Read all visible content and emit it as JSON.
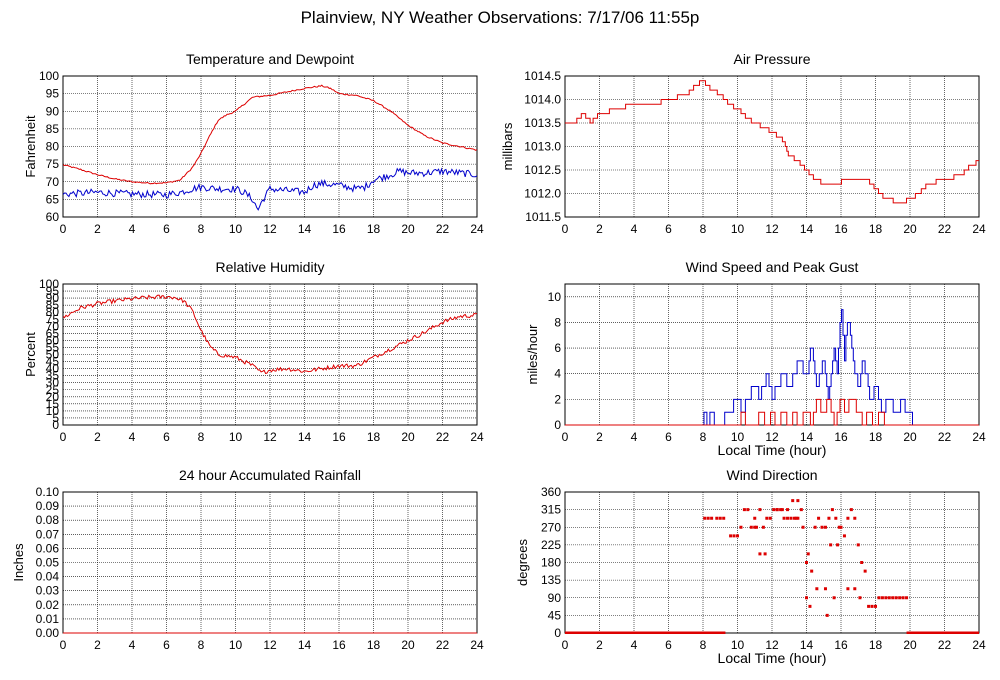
{
  "page_title": "Plainview, NY Weather Observations: 7/17/06 11:55p",
  "colors": {
    "red": "#dd0000",
    "blue": "#0000cc",
    "grid": "#000000",
    "axis": "#000000"
  },
  "chart_data": [
    {
      "id": "temp",
      "type": "line",
      "title": "Temperature and Dewpoint",
      "xlabel": "",
      "ylabel": "Fahrenheit",
      "xlim": [
        0,
        24
      ],
      "ylim": [
        60,
        100
      ],
      "xticks": [
        0,
        2,
        4,
        6,
        8,
        10,
        12,
        14,
        16,
        18,
        20,
        22,
        24
      ],
      "yticks": [
        60,
        65,
        70,
        75,
        80,
        85,
        90,
        95,
        100
      ],
      "ytick_labels": [
        "60",
        "65",
        "70",
        "75",
        "80",
        "85",
        "90",
        "95",
        "100"
      ],
      "grid": true,
      "series": [
        {
          "color": "#dd0000",
          "jitter": 0.2,
          "x": [
            0,
            1,
            2,
            3,
            4,
            5,
            6,
            6.8,
            7.5,
            8,
            8.5,
            9,
            9.5,
            10,
            10.5,
            11,
            12,
            13,
            14,
            15,
            15.5,
            16,
            17,
            18,
            19,
            20,
            21,
            22,
            23,
            24
          ],
          "values": [
            74.8,
            73.5,
            72,
            70.8,
            70,
            69.6,
            69.7,
            70.5,
            74,
            78,
            83,
            87.5,
            89,
            90,
            92,
            94,
            94.5,
            95.5,
            96.5,
            97.2,
            96.5,
            95,
            94.5,
            93,
            90,
            86,
            83,
            81,
            80,
            79
          ]
        },
        {
          "color": "#0000cc",
          "jitter": 1.0,
          "x": [
            0,
            2,
            4,
            6,
            6.8,
            7.5,
            8,
            9,
            10,
            10.5,
            11,
            11.3,
            11.6,
            12,
            13,
            14,
            14.5,
            15,
            16,
            17,
            17.5,
            18,
            19,
            19.5,
            20,
            21,
            22,
            23,
            24
          ],
          "values": [
            66.5,
            67,
            66.5,
            66.3,
            67,
            68,
            68.5,
            68,
            68,
            67,
            65,
            62,
            65,
            68,
            67.5,
            67,
            69,
            69.5,
            69,
            68,
            68.5,
            70.5,
            72,
            73,
            72.5,
            72.5,
            73,
            72.5,
            72
          ]
        }
      ]
    },
    {
      "id": "pressure",
      "type": "line",
      "title": "Air Pressure",
      "xlabel": "",
      "ylabel": "millibars",
      "xlim": [
        0,
        24
      ],
      "ylim": [
        1011.5,
        1014.5
      ],
      "xticks": [
        0,
        2,
        4,
        6,
        8,
        10,
        12,
        14,
        16,
        18,
        20,
        22,
        24
      ],
      "yticks": [
        1011.5,
        1012,
        1012.5,
        1013,
        1013.5,
        1014,
        1014.5
      ],
      "ytick_labels": [
        "1011.5",
        "1012.0",
        "1012.5",
        "1013.0",
        "1013.5",
        "1014.0",
        "1014.5"
      ],
      "grid": true,
      "step": 0.1,
      "series": [
        {
          "color": "#dd0000",
          "jitter": 0.0,
          "x": [
            0,
            0.5,
            1,
            1.5,
            2,
            3,
            4,
            5,
            6,
            7,
            7.5,
            8,
            8.5,
            9,
            9.5,
            10,
            10.5,
            11,
            11.5,
            12,
            12.5,
            13,
            13.5,
            14,
            14.5,
            15,
            16,
            17,
            17.5,
            18,
            18.5,
            19,
            19.5,
            20,
            20.5,
            21,
            22,
            23,
            23.5,
            24
          ],
          "values": [
            1013.5,
            1013.5,
            1013.7,
            1013.5,
            1013.7,
            1013.8,
            1013.9,
            1013.9,
            1014.0,
            1014.1,
            1014.3,
            1014.4,
            1014.2,
            1014.1,
            1013.9,
            1013.8,
            1013.6,
            1013.5,
            1013.4,
            1013.3,
            1013.2,
            1012.8,
            1012.7,
            1012.5,
            1012.3,
            1012.2,
            1012.25,
            1012.3,
            1012.3,
            1012.1,
            1011.9,
            1011.85,
            1011.8,
            1011.9,
            1012.0,
            1012.2,
            1012.3,
            1012.4,
            1012.6,
            1012.7
          ]
        }
      ]
    },
    {
      "id": "humidity",
      "type": "line",
      "title": "Relative Humidity",
      "xlabel": "",
      "ylabel": "Percent",
      "xlim": [
        0,
        24
      ],
      "ylim": [
        0,
        100
      ],
      "xticks": [
        0,
        2,
        4,
        6,
        8,
        10,
        12,
        14,
        16,
        18,
        20,
        22,
        24
      ],
      "yticks": [
        0,
        5,
        10,
        15,
        20,
        25,
        30,
        35,
        40,
        45,
        50,
        55,
        60,
        65,
        70,
        75,
        80,
        85,
        90,
        95,
        100
      ],
      "ytick_labels": [
        "0",
        "5",
        "10",
        "15",
        "20",
        "25",
        "30",
        "35",
        "40",
        "45",
        "50",
        "55",
        "60",
        "65",
        "70",
        "75",
        "80",
        "85",
        "90",
        "95",
        "100"
      ],
      "grid": true,
      "series": [
        {
          "color": "#dd0000",
          "jitter": 1.5,
          "x": [
            0,
            1,
            2,
            3,
            4,
            5,
            6,
            6.5,
            7,
            7.5,
            8,
            8.5,
            9,
            10,
            11,
            11.5,
            12,
            13,
            14,
            15,
            16,
            17,
            18,
            19,
            20,
            21,
            22,
            23,
            24
          ],
          "values": [
            76,
            83,
            86,
            88,
            89.5,
            90.5,
            91,
            90.5,
            88,
            81,
            67,
            56,
            50,
            48,
            42,
            37,
            39,
            40,
            38,
            40,
            42,
            42,
            48,
            54,
            60,
            66,
            73,
            77,
            78
          ]
        }
      ]
    },
    {
      "id": "wind",
      "type": "line",
      "title": "Wind Speed and Peak Gust",
      "xlabel": "Local Time (hour)",
      "ylabel": "miles/hour",
      "xlim": [
        0,
        24
      ],
      "ylim": [
        0,
        11
      ],
      "xticks": [
        0,
        2,
        4,
        6,
        8,
        10,
        12,
        14,
        16,
        18,
        20,
        22,
        24
      ],
      "yticks": [
        0,
        2,
        4,
        6,
        8,
        10
      ],
      "ytick_labels": [
        "0",
        "2",
        "4",
        "6",
        "8",
        "10"
      ],
      "grid": true,
      "step": 1,
      "series": [
        {
          "color": "#0000cc",
          "jitter": 0.0,
          "x": [
            0,
            8,
            8.1,
            8.3,
            8.5,
            8.7,
            9,
            9.5,
            10,
            10.3,
            10.6,
            11,
            11.3,
            11.7,
            12,
            12.3,
            12.6,
            13,
            13.3,
            13.6,
            14,
            14.3,
            14.6,
            15,
            15.3,
            15.6,
            15.8,
            16,
            16.2,
            16.4,
            16.7,
            17,
            17.3,
            17.7,
            18,
            18.4,
            18.8,
            19.2,
            19.6,
            19.8,
            20,
            20.2,
            24
          ],
          "values": [
            0,
            0,
            1,
            0,
            1,
            0,
            0,
            1,
            2,
            1,
            2,
            3,
            2,
            4,
            2,
            3,
            4,
            3,
            4,
            5,
            4,
            6,
            3,
            5,
            2,
            6,
            4,
            10,
            5,
            9,
            5,
            3,
            5,
            2,
            3,
            1,
            2,
            1,
            2,
            1,
            1,
            0,
            0
          ]
        },
        {
          "color": "#dd0000",
          "jitter": 0.0,
          "x": [
            0,
            10,
            10.3,
            10.6,
            11,
            11.3,
            11.7,
            12,
            12.3,
            12.6,
            13,
            13.3,
            13.6,
            14,
            14.3,
            14.6,
            15,
            15.3,
            15.6,
            16,
            16.3,
            16.6,
            17,
            17.3,
            17.6,
            18,
            18.3,
            18.6,
            19,
            24
          ],
          "values": [
            0,
            0,
            1,
            0,
            0,
            1,
            0,
            1,
            0,
            1,
            0,
            1,
            0,
            1,
            0,
            2,
            1,
            2,
            0,
            2,
            1,
            2,
            1,
            0,
            1,
            0,
            1,
            0,
            0,
            0
          ]
        }
      ]
    },
    {
      "id": "rain",
      "type": "line",
      "title": "24 hour Accumulated Rainfall",
      "xlabel": "",
      "ylabel": "Inches",
      "xlim": [
        0,
        24
      ],
      "ylim": [
        0,
        0.1
      ],
      "xticks": [
        0,
        2,
        4,
        6,
        8,
        10,
        12,
        14,
        16,
        18,
        20,
        22,
        24
      ],
      "yticks": [
        0,
        0.01,
        0.02,
        0.03,
        0.04,
        0.05,
        0.06,
        0.07,
        0.08,
        0.09,
        0.1
      ],
      "ytick_labels": [
        "0.00",
        "0.01",
        "0.02",
        "0.03",
        "0.04",
        "0.05",
        "0.06",
        "0.07",
        "0.08",
        "0.09",
        "0.10"
      ],
      "grid": true,
      "series": [
        {
          "color": "#dd0000",
          "jitter": 0.0,
          "x": [
            0,
            24
          ],
          "values": [
            0,
            0
          ]
        }
      ]
    },
    {
      "id": "direction",
      "type": "scatter",
      "title": "Wind Direction",
      "xlabel": "Local Time (hour)",
      "ylabel": "degrees",
      "xlim": [
        0,
        24
      ],
      "ylim": [
        0,
        360
      ],
      "xticks": [
        0,
        2,
        4,
        6,
        8,
        10,
        12,
        14,
        16,
        18,
        20,
        22,
        24
      ],
      "yticks": [
        0,
        45,
        90,
        135,
        180,
        225,
        270,
        315,
        360
      ],
      "ytick_labels": [
        "0",
        "45",
        "90",
        "135",
        "180",
        "225",
        "270",
        "315",
        "360"
      ],
      "grid": true,
      "zero_runs": [
        [
          0,
          9.3
        ],
        [
          19.8,
          24
        ]
      ],
      "series": [
        {
          "color": "#dd0000",
          "x": [
            8.1,
            8.3,
            8.5,
            8.8,
            9.0,
            9.2,
            9.6,
            9.8,
            10.0,
            10.2,
            10.4,
            10.6,
            10.8,
            11.0,
            11.1,
            11.3,
            11.5,
            11.7,
            11.9,
            12.1,
            12.3,
            12.5,
            12.7,
            12.9,
            13.1,
            13.3,
            13.5,
            13.7,
            13.8,
            14.0,
            14.1,
            14.3,
            14.5,
            14.7,
            14.9,
            15.1,
            15.3,
            15.5,
            15.7,
            15.9,
            16.0,
            16.2,
            16.4,
            16.6,
            16.8,
            17.0,
            17.2,
            17.4,
            17.6,
            17.8,
            18.0,
            18.2,
            18.4,
            18.6,
            18.8,
            19.0,
            19.2,
            19.4,
            19.6,
            19.8,
            12.3,
            12.6,
            12.9,
            13.2,
            13.5,
            15.4,
            15.8,
            16.4,
            16.8,
            17.1,
            11.6,
            11.3,
            14.0,
            14.2,
            15.1,
            15.6,
            11.0,
            13.4,
            14.6,
            15.2
          ],
          "values": [
            293,
            293,
            293,
            293,
            293,
            293,
            248,
            248,
            248,
            270,
            315,
            315,
            270,
            293,
            270,
            315,
            270,
            293,
            293,
            315,
            315,
            315,
            293,
            293,
            293,
            293,
            293,
            315,
            270,
            180,
            202,
            158,
            270,
            293,
            270,
            270,
            293,
            315,
            293,
            270,
            270,
            248,
            293,
            315,
            293,
            225,
            180,
            158,
            68,
            68,
            68,
            90,
            90,
            90,
            90,
            90,
            90,
            90,
            90,
            90,
            315,
            315,
            315,
            338,
            338,
            225,
            225,
            113,
            113,
            90,
            202,
            202,
            90,
            68,
            113,
            90,
            270,
            293,
            113,
            45
          ]
        }
      ]
    }
  ]
}
